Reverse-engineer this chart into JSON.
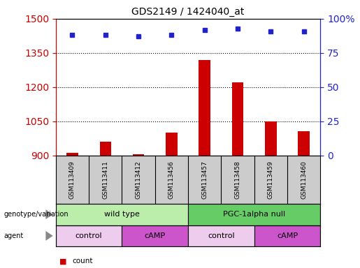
{
  "title": "GDS2149 / 1424040_at",
  "samples": [
    "GSM113409",
    "GSM113411",
    "GSM113412",
    "GSM113456",
    "GSM113457",
    "GSM113458",
    "GSM113459",
    "GSM113460"
  ],
  "counts": [
    910,
    960,
    905,
    1000,
    1320,
    1220,
    1050,
    1005
  ],
  "percentile_ranks": [
    88,
    88,
    87,
    88,
    92,
    93,
    91,
    91
  ],
  "ylim_left": [
    900,
    1500
  ],
  "ylim_right": [
    0,
    100
  ],
  "yticks_left": [
    900,
    1050,
    1200,
    1350,
    1500
  ],
  "yticks_right": [
    0,
    25,
    50,
    75,
    100
  ],
  "bar_color": "#cc0000",
  "dot_color": "#2222cc",
  "genotype_groups": [
    {
      "label": "wild type",
      "start": 0,
      "end": 4,
      "color": "#bbeeaa"
    },
    {
      "label": "PGC-1alpha null",
      "start": 4,
      "end": 8,
      "color": "#66cc66"
    }
  ],
  "agent_groups": [
    {
      "label": "control",
      "start": 0,
      "end": 2,
      "color": "#eeccee"
    },
    {
      "label": "cAMP",
      "start": 2,
      "end": 4,
      "color": "#cc55cc"
    },
    {
      "label": "control",
      "start": 4,
      "end": 6,
      "color": "#eeccee"
    },
    {
      "label": "cAMP",
      "start": 6,
      "end": 8,
      "color": "#cc55cc"
    }
  ],
  "legend_count_color": "#cc0000",
  "legend_pct_color": "#2222cc",
  "left_tick_color": "#cc0000",
  "right_tick_color": "#2222cc",
  "sample_bg_color": "#cccccc",
  "grid_color": "#000000"
}
